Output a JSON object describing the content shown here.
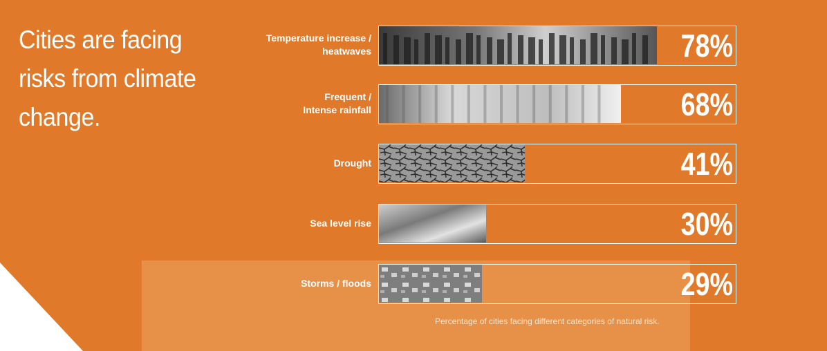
{
  "heading": "Cities are facing risks from climate change.",
  "caption": "Percentage of cities facing different categories of natural risk.",
  "colors": {
    "background": "#e07a2a",
    "panel_light": "#e6914a",
    "text": "#ffffff"
  },
  "chart_data": {
    "type": "bar",
    "orientation": "horizontal",
    "title": "Cities are facing risks from climate change.",
    "caption": "Percentage of cities facing different categories of natural risk.",
    "unit": "%",
    "xlim": [
      0,
      100
    ],
    "categories": [
      "Temperature increase / heatwaves",
      "Frequent / Intense rainfall",
      "Drought",
      "Sea level rise",
      "Storms / floods"
    ],
    "category_lines": [
      [
        "Temperature increase /",
        "heatwaves"
      ],
      [
        "Frequent /",
        "Intense rainfall"
      ],
      [
        "Drought"
      ],
      [
        "Sea level rise"
      ],
      [
        "Storms / floods"
      ]
    ],
    "values": [
      78,
      68,
      41,
      30,
      29
    ],
    "value_labels": [
      "78%",
      "68%",
      "41%",
      "30%",
      "29%"
    ],
    "bar_textures": [
      "crowd-photo",
      "wet-street-photo",
      "cracked-earth-photo",
      "waves-photo",
      "flooded-houses-photo"
    ]
  }
}
